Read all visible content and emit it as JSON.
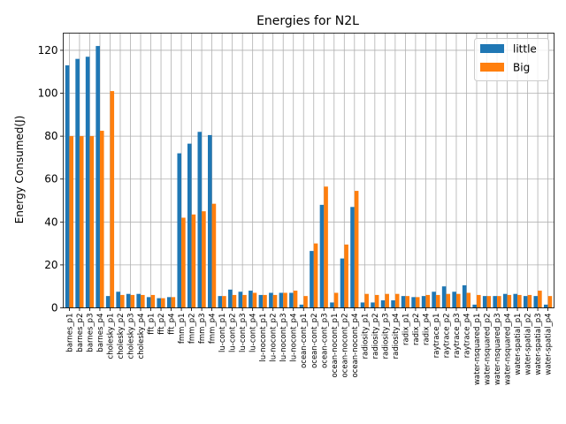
{
  "chart_data": {
    "type": "bar",
    "title": "Energies for N2L",
    "xlabel": "",
    "ylabel": "Energy Consumed(J)",
    "ylim": [
      0,
      128
    ],
    "yticks": [
      0,
      20,
      40,
      60,
      80,
      100,
      120
    ],
    "grid": true,
    "legend_position": "top-right",
    "categories": [
      "barnes_p1",
      "barnes_p2",
      "barnes_p3",
      "barnes_p4",
      "cholesky_p1",
      "cholesky_p2",
      "cholesky_p3",
      "cholesky_p4",
      "fft_p1",
      "fft_p2",
      "fft_p4",
      "fmm_p1",
      "fmm_p2",
      "fmm_p3",
      "fmm_p4",
      "lu-cont_p1",
      "lu-cont_p2",
      "lu-cont_p3",
      "lu-cont_p4",
      "lu-nocont_p1",
      "lu-nocont_p2",
      "lu-nocont_p3",
      "lu-nocont_p4",
      "ocean-cont_p1",
      "ocean-cont_p2",
      "ocean-cont_p3",
      "ocean-nocont_p1",
      "ocean-nocont_p2",
      "ocean-nocont_p4",
      "radiosity_p1",
      "radiosity_p2",
      "radiosity_p3",
      "radiosity_p4",
      "radix_p1",
      "radix_p2",
      "radix_p4",
      "raytrace_p1",
      "raytrace_p2",
      "raytrace_p3",
      "raytrace_p4",
      "water-nsquared_p1",
      "water-nsquared_p2",
      "water-nsquared_p3",
      "water-nsquared_p4",
      "water-spatial_p1",
      "water-spatial_p2",
      "water-spatial_p3",
      "water-spatial_p4"
    ],
    "series": [
      {
        "name": "little",
        "color": "#1f77b4",
        "values": [
          113,
          116,
          117,
          122,
          5.5,
          7.5,
          6.5,
          6.5,
          5,
          4.5,
          5,
          72,
          76.5,
          82,
          80.5,
          5.5,
          8.5,
          7.5,
          8,
          6,
          7,
          7,
          7,
          1.5,
          26.5,
          48,
          2.5,
          23,
          47,
          2.5,
          2.5,
          3.5,
          3.5,
          5.5,
          5,
          5.5,
          7.5,
          10,
          7.5,
          10.5,
          1.5,
          5.5,
          5.5,
          6.5,
          6.5,
          5.5,
          5.5,
          1.5
        ]
      },
      {
        "name": "Big",
        "color": "#ff7f0e",
        "values": [
          80,
          80,
          80,
          82.5,
          101,
          6,
          6,
          6,
          6,
          4.5,
          5,
          42,
          43.5,
          45,
          48.5,
          5.5,
          6,
          6,
          7,
          6,
          6,
          7,
          8,
          5.5,
          30,
          56.5,
          7,
          29.5,
          54.5,
          6.5,
          6,
          6.5,
          6.5,
          5.5,
          5,
          6,
          6,
          6.5,
          6.5,
          7,
          6,
          5.5,
          5.5,
          6,
          6,
          6,
          8,
          5.5
        ]
      }
    ]
  }
}
